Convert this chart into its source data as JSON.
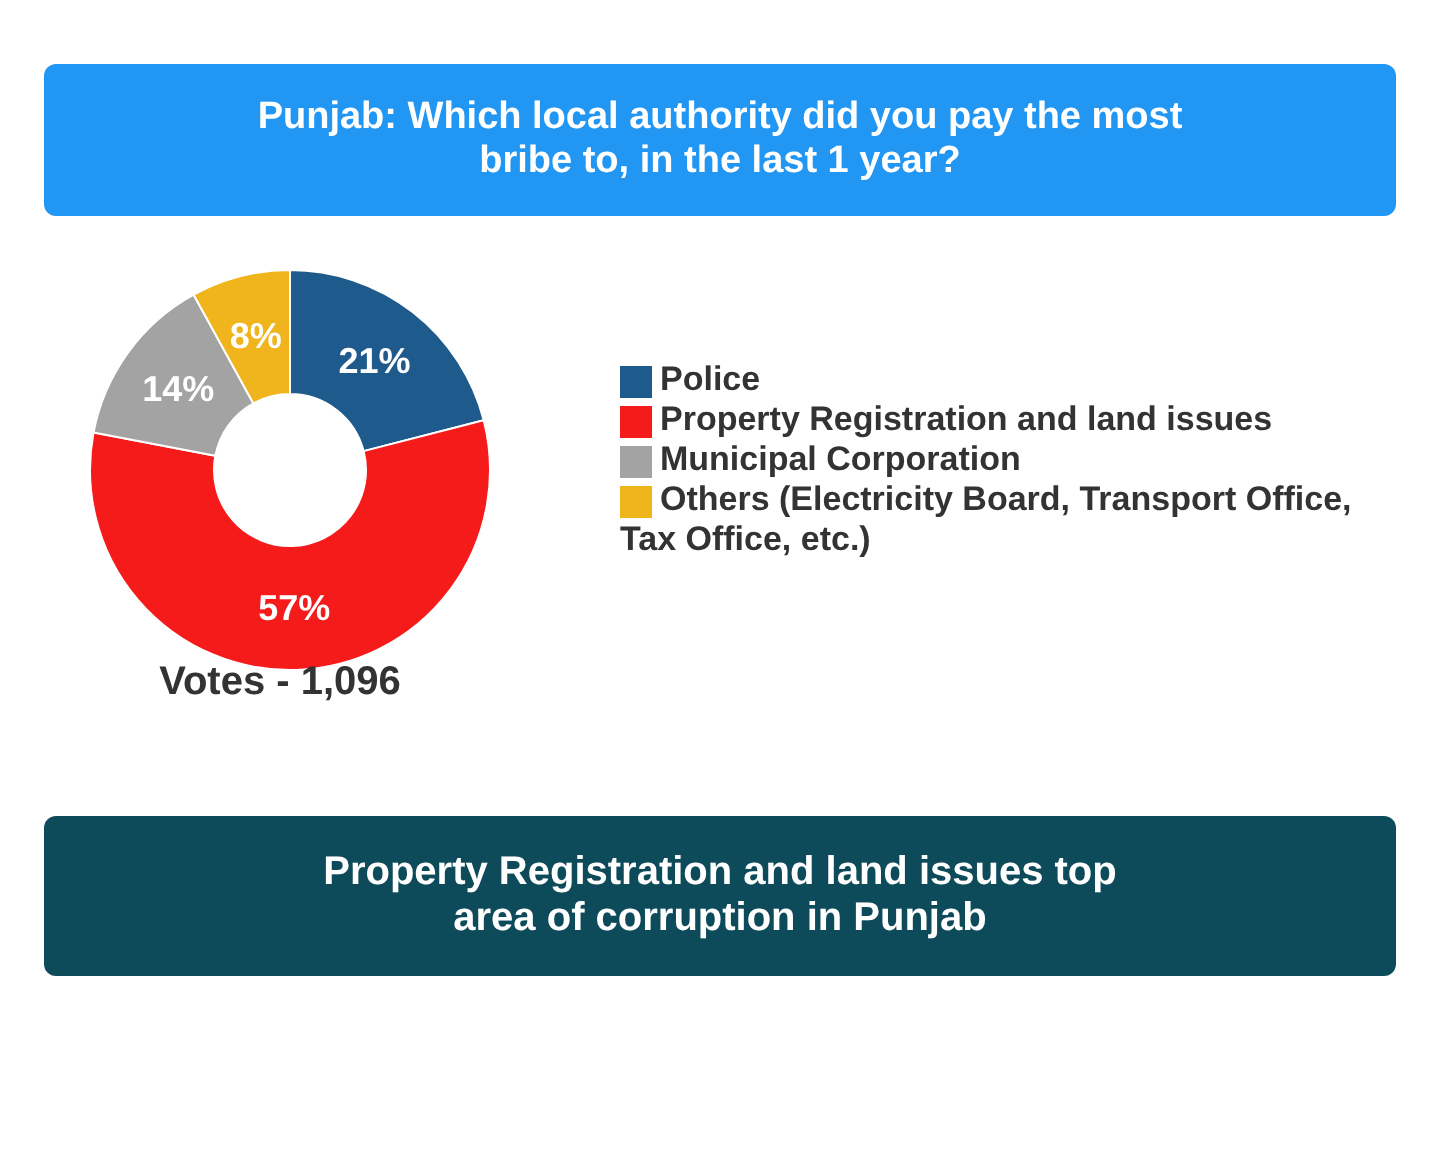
{
  "chart_data": {
    "type": "donut",
    "title": "Punjab: Which local authority did you pay the most bribe to, in the last 1 year?",
    "categories": [
      "Police",
      "Property Registration and land issues",
      "Municipal Corporation",
      "Others (Electricity Board, Transport Office, Tax Office, etc.)"
    ],
    "values": [
      21,
      57,
      14,
      8
    ],
    "colors": [
      "#1f5a8c",
      "#f51b1b",
      "#a3a3a3",
      "#f0b41c"
    ],
    "value_labels": [
      "21%",
      "57%",
      "14%",
      "8%"
    ],
    "legend": "right",
    "annotations": [
      "Votes - 1,096",
      "Property Registration and land issues top area of corruption in Punjab"
    ]
  }
}
